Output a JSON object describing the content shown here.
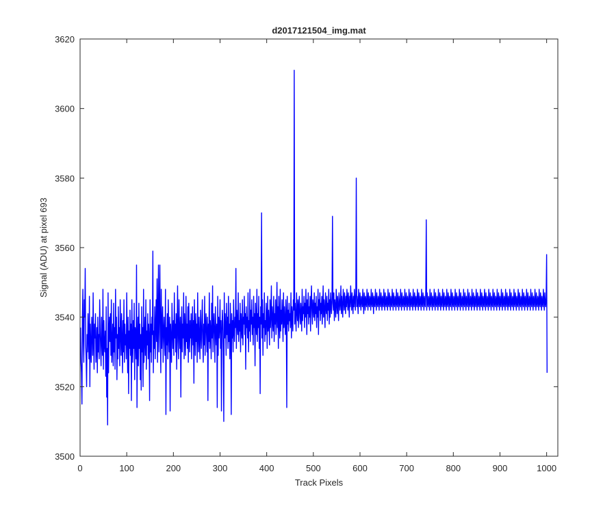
{
  "chart_data": {
    "type": "line",
    "title": "d2017121504_img.mat",
    "xlabel": "Track Pixels",
    "ylabel": "Signal (ADU) at pixel 693",
    "xlim": [
      0,
      1024
    ],
    "ylim": [
      3500,
      3620
    ],
    "xticks": [
      0,
      100,
      200,
      300,
      400,
      500,
      600,
      700,
      800,
      900,
      1000
    ],
    "yticks": [
      3500,
      3520,
      3540,
      3560,
      3580,
      3600,
      3620
    ],
    "grid": false,
    "legend": "none",
    "series": [
      {
        "color": "#0000ff",
        "x_start": 1,
        "x_step": 1,
        "values_note_free": true,
        "values": [
          3537,
          3527,
          3524,
          3515,
          3540,
          3548,
          3533,
          3527,
          3545,
          3540,
          3554,
          3532,
          3528,
          3520,
          3535,
          3530,
          3541,
          3534,
          3528,
          3546,
          3520,
          3538,
          3531,
          3527,
          3540,
          3536,
          3529,
          3547,
          3533,
          3525,
          3538,
          3534,
          3541,
          3527,
          3531,
          3537,
          3524,
          3540,
          3530,
          3535,
          3528,
          3545,
          3537,
          3531,
          3526,
          3540,
          3534,
          3529,
          3548,
          3525,
          3539,
          3532,
          3530,
          3536,
          3523,
          3543,
          3517,
          3531,
          3509,
          3547,
          3524,
          3536,
          3540,
          3533,
          3541,
          3529,
          3545,
          3527,
          3532,
          3538,
          3526,
          3544,
          3530,
          3537,
          3525,
          3548,
          3534,
          3540,
          3522,
          3535,
          3528,
          3543,
          3531,
          3537,
          3526,
          3545,
          3536,
          3529,
          3541,
          3533,
          3524,
          3539,
          3530,
          3545,
          3527,
          3538,
          3532,
          3535,
          3528,
          3547,
          3534,
          3524,
          3540,
          3518,
          3536,
          3531,
          3542,
          3529,
          3538,
          3516,
          3545,
          3533,
          3527,
          3539,
          3531,
          3544,
          3522,
          3537,
          3535,
          3528,
          3555,
          3514,
          3533,
          3540,
          3526,
          3544,
          3531,
          3538,
          3522,
          3535,
          3519,
          3543,
          3530,
          3537,
          3520,
          3548,
          3527,
          3533,
          3540,
          3529,
          3545,
          3525,
          3536,
          3532,
          3541,
          3528,
          3538,
          3534,
          3516,
          3545,
          3530,
          3538,
          3527,
          3540,
          3535,
          3559,
          3524,
          3536,
          3531,
          3543,
          3528,
          3537,
          3545,
          3533,
          3551,
          3527,
          3539,
          3555,
          3530,
          3541,
          3555,
          3535,
          3524,
          3548,
          3531,
          3538,
          3543,
          3527,
          3536,
          3540,
          3533,
          3529,
          3548,
          3512,
          3537,
          3532,
          3541,
          3528,
          3545,
          3535,
          3530,
          3540,
          3513,
          3538,
          3533,
          3527,
          3544,
          3536,
          3531,
          3539,
          3529,
          3547,
          3534,
          3538,
          3530,
          3541,
          3525,
          3537,
          3549,
          3533,
          3528,
          3545,
          3536,
          3531,
          3540,
          3517,
          3537,
          3543,
          3530,
          3538,
          3534,
          3547,
          3528,
          3541,
          3535,
          3529,
          3546,
          3533,
          3538,
          3531,
          3543,
          3527,
          3544,
          3536,
          3530,
          3539,
          3534,
          3541,
          3528,
          3536,
          3543,
          3532,
          3539,
          3521,
          3545,
          3536,
          3529,
          3541,
          3533,
          3538,
          3527,
          3547,
          3535,
          3530,
          3540,
          3534,
          3528,
          3542,
          3536,
          3531,
          3539,
          3545,
          3533,
          3527,
          3538,
          3532,
          3546,
          3529,
          3537,
          3541,
          3535,
          3530,
          3540,
          3516,
          3538,
          3533,
          3547,
          3531,
          3539,
          3536,
          3528,
          3544,
          3534,
          3549,
          3530,
          3537,
          3541,
          3535,
          3527,
          3543,
          3536,
          3532,
          3538,
          3514,
          3546,
          3529,
          3540,
          3534,
          3537,
          3545,
          3531,
          3539,
          3513,
          3536,
          3542,
          3538,
          3530,
          3510,
          3547,
          3534,
          3541,
          3537,
          3529,
          3544,
          3535,
          3540,
          3531,
          3546,
          3533,
          3538,
          3528,
          3544,
          3537,
          3512,
          3541,
          3534,
          3539,
          3530,
          3545,
          3536,
          3533,
          3540,
          3537,
          3554,
          3531,
          3542,
          3538,
          3535,
          3547,
          3533,
          3539,
          3536,
          3544,
          3530,
          3541,
          3537,
          3534,
          3545,
          3532,
          3540,
          3538,
          3546,
          3535,
          3541,
          3525,
          3543,
          3537,
          3540,
          3534,
          3547,
          3530,
          3539,
          3536,
          3548,
          3533,
          3542,
          3538,
          3545,
          3535,
          3540,
          3532,
          3546,
          3537,
          3541,
          3526,
          3544,
          3539,
          3535,
          3548,
          3533,
          3541,
          3537,
          3546,
          3531,
          3540,
          3518,
          3543,
          3538,
          3570,
          3534,
          3545,
          3529,
          3541,
          3537,
          3547,
          3533,
          3539,
          3535,
          3544,
          3540,
          3531,
          3546,
          3536,
          3542,
          3538,
          3532,
          3545,
          3537,
          3541,
          3549,
          3534,
          3543,
          3539,
          3536,
          3546,
          3533,
          3541,
          3538,
          3545,
          3535,
          3540,
          3550,
          3537,
          3543,
          3531,
          3546,
          3539,
          3534,
          3548,
          3536,
          3542,
          3538,
          3545,
          3540,
          3533,
          3547,
          3537,
          3543,
          3539,
          3535,
          3545,
          3541,
          3514,
          3546,
          3538,
          3542,
          3536,
          3544,
          3539,
          3541,
          3537,
          3547,
          3534,
          3543,
          3540,
          3536,
          3545,
          3542,
          3611,
          3538,
          3544,
          3540,
          3536,
          3547,
          3542,
          3539,
          3545,
          3537,
          3543,
          3546,
          3540,
          3538,
          3544,
          3541,
          3536,
          3548,
          3539,
          3543,
          3541,
          3546,
          3537,
          3544,
          3540,
          3548,
          3542,
          3535,
          3545,
          3541,
          3547,
          3538,
          3543,
          3540,
          3546,
          3536,
          3544,
          3549,
          3542,
          3538,
          3545,
          3543,
          3540,
          3547,
          3539,
          3544,
          3541,
          3546,
          3537,
          3543,
          3540,
          3548,
          3535,
          3545,
          3542,
          3547,
          3539,
          3544,
          3541,
          3546,
          3538,
          3543,
          3549,
          3540,
          3545,
          3542,
          3537,
          3547,
          3543,
          3541,
          3546,
          3539,
          3544,
          3542,
          3548,
          3538,
          3545,
          3540,
          3547,
          3543,
          3541,
          3546,
          3569,
          3544,
          3542,
          3547,
          3539,
          3545,
          3543,
          3540,
          3548,
          3544,
          3541,
          3546,
          3543,
          3539,
          3547,
          3545,
          3542,
          3544,
          3549,
          3541,
          3546,
          3543,
          3540,
          3548,
          3545,
          3542,
          3547,
          3544,
          3541,
          3546,
          3543,
          3548,
          3545,
          3542,
          3547,
          3544,
          3540,
          3546,
          3543,
          3549,
          3545,
          3542,
          3547,
          3544,
          3541,
          3546,
          3543,
          3548,
          3545,
          3542,
          3547,
          3580,
          3543,
          3546,
          3544,
          3541,
          3548,
          3545,
          3543,
          3547,
          3544,
          3542,
          3546,
          3545,
          3543,
          3548,
          3544,
          3541,
          3547,
          3545,
          3542,
          3546,
          3544,
          3543,
          3548,
          3545,
          3542,
          3547,
          3544,
          3543,
          3546,
          3545,
          3542,
          3548,
          3544,
          3543,
          3547,
          3545,
          3541,
          3546,
          3544,
          3543,
          3548,
          3545,
          3542,
          3547,
          3544,
          3543,
          3546,
          3545,
          3542,
          3548,
          3544,
          3543,
          3547,
          3545,
          3542,
          3546,
          3544,
          3543,
          3548,
          3545,
          3542,
          3547,
          3544,
          3543,
          3546,
          3545,
          3542,
          3548,
          3544,
          3543,
          3547,
          3545,
          3542,
          3546,
          3544,
          3543,
          3548,
          3545,
          3542,
          3547,
          3544,
          3543,
          3546,
          3545,
          3542,
          3548,
          3544,
          3543,
          3547,
          3545,
          3542,
          3546,
          3544,
          3543,
          3548,
          3545,
          3542,
          3547,
          3544,
          3543,
          3546,
          3545,
          3542,
          3548,
          3544,
          3543,
          3547,
          3545,
          3542,
          3546,
          3544,
          3543,
          3548,
          3545,
          3542,
          3547,
          3544,
          3543,
          3546,
          3545,
          3542,
          3548,
          3544,
          3543,
          3547,
          3545,
          3542,
          3546,
          3544,
          3543,
          3548,
          3545,
          3542,
          3547,
          3544,
          3543,
          3546,
          3545,
          3542,
          3548,
          3544,
          3543,
          3547,
          3545,
          3542,
          3546,
          3544,
          3543,
          3548,
          3568,
          3542,
          3547,
          3544,
          3543,
          3546,
          3545,
          3542,
          3548,
          3544,
          3543,
          3547,
          3545,
          3542,
          3546,
          3544,
          3543,
          3548,
          3545,
          3542,
          3547,
          3544,
          3543,
          3546,
          3545,
          3542,
          3548,
          3544,
          3543,
          3547,
          3545,
          3542,
          3546,
          3544,
          3543,
          3548,
          3545,
          3542,
          3547,
          3544,
          3543,
          3546,
          3545,
          3542,
          3548,
          3544,
          3543,
          3547,
          3545,
          3542,
          3546,
          3544,
          3543,
          3548,
          3545,
          3542,
          3547,
          3544,
          3543,
          3546,
          3545,
          3542,
          3548,
          3544,
          3543,
          3547,
          3545,
          3542,
          3546,
          3544,
          3543,
          3548,
          3545,
          3542,
          3547,
          3544,
          3543,
          3546,
          3545,
          3542,
          3548,
          3544,
          3543,
          3547,
          3545,
          3542,
          3546,
          3544,
          3543,
          3548,
          3545,
          3542,
          3547,
          3544,
          3543,
          3546,
          3545,
          3542,
          3548,
          3544,
          3543,
          3547,
          3545,
          3542,
          3546,
          3544,
          3543,
          3548,
          3545,
          3542,
          3547,
          3544,
          3543,
          3546,
          3545,
          3542,
          3548,
          3544,
          3543,
          3547,
          3545,
          3542,
          3546,
          3544,
          3543,
          3548,
          3545,
          3542,
          3547,
          3544,
          3543,
          3546,
          3545,
          3542,
          3548,
          3544,
          3543,
          3547,
          3545,
          3542,
          3546,
          3544,
          3543,
          3548,
          3545,
          3542,
          3547,
          3544,
          3543,
          3546,
          3545,
          3542,
          3548,
          3544,
          3543,
          3547,
          3545,
          3542,
          3546,
          3544,
          3543,
          3548,
          3545,
          3542,
          3547,
          3544,
          3543,
          3546,
          3545,
          3542,
          3548,
          3544,
          3543,
          3547,
          3545,
          3542,
          3546,
          3544,
          3543,
          3548,
          3545,
          3542,
          3547,
          3544,
          3543,
          3546,
          3545,
          3542,
          3548,
          3544,
          3543,
          3547,
          3545,
          3542,
          3546,
          3544,
          3543,
          3548,
          3545,
          3542,
          3547,
          3544,
          3543,
          3546,
          3545,
          3542,
          3548,
          3544,
          3543,
          3547,
          3545,
          3542,
          3546,
          3544,
          3543,
          3548,
          3545,
          3542,
          3547,
          3544,
          3543,
          3546,
          3545,
          3542,
          3548,
          3544,
          3543,
          3547,
          3545,
          3542,
          3546,
          3544,
          3543,
          3548,
          3545,
          3542,
          3547,
          3544,
          3543,
          3546,
          3545,
          3542,
          3548,
          3544,
          3543,
          3547,
          3545,
          3542,
          3546,
          3544,
          3543,
          3548,
          3545,
          3542,
          3547,
          3544,
          3543,
          3546,
          3558,
          3524
        ]
      }
    ]
  }
}
